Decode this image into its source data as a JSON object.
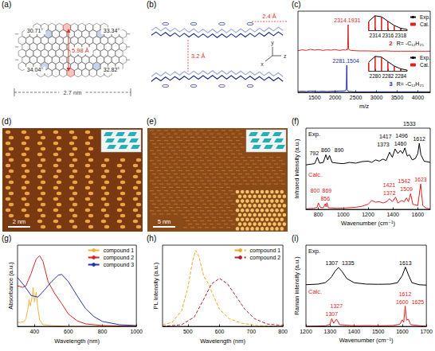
{
  "chart_data": [
    {
      "title": "(c)",
      "type": "line",
      "xlabel": "m/z",
      "xlim": [
        1100,
        4300
      ],
      "xticks": [
        1500,
        2000,
        2500,
        3000,
        3500,
        4000
      ],
      "ylim": [
        0,
        1.5
      ],
      "tick_labels": "x",
      "x": [
        1100,
        1200,
        1300,
        1400,
        1500,
        1600,
        1700,
        1800,
        1900,
        2000,
        2100,
        2200,
        2250,
        2270,
        2281,
        2290,
        2300,
        2314,
        2325,
        2340,
        2380,
        2450,
        2600,
        2800,
        3000,
        3200,
        3400,
        3600,
        3800,
        4000,
        4200,
        4300
      ],
      "series": [
        {
          "name": "2",
          "color": "#d62728",
          "values": [
            0.04,
            0.07,
            0.05,
            0.09,
            0.06,
            0.08,
            0.05,
            0.07,
            0.06,
            0.08,
            0.05,
            0.07,
            0.06,
            0.08,
            0.1,
            0.06,
            0.08,
            1.0,
            0.12,
            0.07,
            0.05,
            0.04,
            0.03,
            0.03,
            0.02,
            0.03,
            0.02,
            0.02,
            0.02,
            0.02,
            0.02,
            0.02
          ]
        },
        {
          "name": "3",
          "color": "#1f2f9e",
          "values": [
            0.03,
            0.04,
            0.03,
            0.05,
            0.04,
            0.03,
            0.04,
            0.03,
            0.04,
            0.04,
            0.05,
            0.05,
            0.06,
            0.12,
            1.0,
            0.1,
            0.06,
            0.05,
            0.04,
            0.03,
            0.03,
            0.02,
            0.02,
            0.02,
            0.02,
            0.02,
            0.02,
            0.02,
            0.02,
            0.02,
            0.02,
            0.02
          ]
        }
      ],
      "annotations": [
        {
          "text": "2314.1931",
          "x": 2314,
          "series": "2"
        },
        {
          "text": "2281.1504",
          "x": 2281,
          "series": "3"
        },
        {
          "text": "R= -C₁₂H₂₅",
          "series": "2"
        },
        {
          "text": "R= -C₁₂H₂₅",
          "series": "3"
        }
      ],
      "insets": [
        {
          "type": "line",
          "xlim": [
            2313,
            2319
          ],
          "xticks": [
            2314,
            2316,
            2318
          ],
          "ylim": [
            0,
            1.1
          ],
          "tick_labels": "x",
          "legend": "right",
          "x": [
            2313,
            2314,
            2315,
            2316,
            2317,
            2318,
            2319
          ],
          "series": [
            {
              "name": "Exp.",
              "color": "#000000",
              "type": "line",
              "values": [
                0.62,
                1.0,
                0.93,
                0.62,
                0.33,
                0.14,
                0.05
              ]
            },
            {
              "name": "Cal.",
              "color": "#e02020",
              "type": "bar",
              "values": [
                0.6,
                1.0,
                0.9,
                0.6,
                0.3,
                0.13,
                0.05
              ]
            }
          ]
        },
        {
          "type": "line",
          "xlim": [
            2279,
            2285
          ],
          "xticks": [
            2280,
            2282,
            2284
          ],
          "ylim": [
            0,
            1.1
          ],
          "tick_labels": "x",
          "legend": "right",
          "x": [
            2279,
            2280,
            2281,
            2282,
            2283,
            2284,
            2285
          ],
          "series": [
            {
              "name": "Exp.",
              "color": "#000000",
              "type": "line",
              "values": [
                0.6,
                1.0,
                0.95,
                0.63,
                0.33,
                0.14,
                0.05
              ]
            },
            {
              "name": "Cal.",
              "color": "#e02020",
              "type": "bar",
              "values": [
                0.58,
                1.0,
                0.92,
                0.6,
                0.31,
                0.13,
                0.05
              ]
            }
          ]
        }
      ]
    },
    {
      "title": "(f)",
      "type": "line",
      "xlabel": "Wavenumber (cm⁻¹)",
      "ylabel": "Infrared intensity (a.u.)",
      "xlim": [
        700,
        1700
      ],
      "xticks": [
        800,
        1000,
        1200,
        1400,
        1600
      ],
      "ylim": [
        0,
        1.6
      ],
      "tick_labels": "x",
      "series": [
        {
          "name": "Exp.",
          "color": "#000000",
          "x": [
            700,
            740,
            770,
            792,
            810,
            840,
            860,
            875,
            890,
            910,
            950,
            1000,
            1050,
            1100,
            1150,
            1200,
            1230,
            1260,
            1290,
            1320,
            1345,
            1373,
            1395,
            1417,
            1440,
            1460,
            1478,
            1496,
            1515,
            1533,
            1555,
            1580,
            1600,
            1612,
            1625,
            1650,
            1700
          ],
          "values": [
            0.15,
            0.18,
            0.2,
            0.45,
            0.22,
            0.25,
            0.55,
            0.35,
            0.52,
            0.25,
            0.22,
            0.2,
            0.25,
            0.22,
            0.28,
            0.3,
            0.25,
            0.35,
            0.3,
            0.38,
            0.32,
            0.65,
            0.45,
            0.78,
            0.6,
            0.72,
            0.6,
            0.82,
            0.5,
            0.55,
            0.35,
            0.4,
            0.6,
            1.0,
            0.55,
            0.3,
            0.25
          ]
        },
        {
          "name": "Calc.",
          "color": "#e02020",
          "x": [
            700,
            760,
            790,
            800,
            815,
            840,
            856,
            862,
            869,
            880,
            950,
            1000,
            1100,
            1150,
            1200,
            1230,
            1260,
            1290,
            1320,
            1350,
            1372,
            1395,
            1421,
            1440,
            1470,
            1490,
            1509,
            1525,
            1542,
            1560,
            1600,
            1623,
            1640,
            1670,
            1700
          ],
          "values": [
            0.02,
            0.04,
            0.08,
            0.25,
            0.08,
            0.06,
            0.22,
            0.1,
            0.26,
            0.06,
            0.04,
            0.05,
            0.08,
            0.12,
            0.2,
            0.35,
            0.28,
            0.3,
            0.25,
            0.3,
            0.42,
            0.3,
            0.48,
            0.25,
            0.35,
            0.3,
            0.45,
            0.3,
            0.62,
            0.2,
            0.15,
            1.0,
            0.15,
            0.04,
            0.02
          ]
        }
      ],
      "annotations": [
        {
          "text": "792",
          "x": 792,
          "series": "Exp."
        },
        {
          "text": "860",
          "x": 860,
          "series": "Exp."
        },
        {
          "text": "890",
          "x": 890,
          "series": "Exp."
        },
        {
          "text": "1373",
          "x": 1373,
          "series": "Exp."
        },
        {
          "text": "1417",
          "x": 1417,
          "series": "Exp."
        },
        {
          "text": "1460",
          "x": 1460,
          "series": "Exp."
        },
        {
          "text": "1496",
          "x": 1496,
          "series": "Exp."
        },
        {
          "text": "1533",
          "x": 1533,
          "series": "Exp."
        },
        {
          "text": "1612",
          "x": 1612,
          "series": "Exp."
        },
        {
          "text": "800",
          "x": 800,
          "series": "Calc."
        },
        {
          "text": "856",
          "x": 856,
          "series": "Calc."
        },
        {
          "text": "869",
          "x": 869,
          "series": "Calc."
        },
        {
          "text": "1372",
          "x": 1372,
          "series": "Calc."
        },
        {
          "text": "1421",
          "x": 1421,
          "series": "Calc."
        },
        {
          "text": "1509",
          "x": 1509,
          "series": "Calc."
        },
        {
          "text": "1542",
          "x": 1542,
          "series": "Calc."
        },
        {
          "text": "1623",
          "x": 1623,
          "series": "Calc."
        }
      ]
    },
    {
      "title": "(g)",
      "type": "line",
      "xlabel": "Wavelength (nm)",
      "ylabel": "Absorbance (a.u.)",
      "xlim": [
        300,
        1000
      ],
      "xticks": [
        400,
        600,
        800,
        1000
      ],
      "ylim": [
        0,
        1
      ],
      "tick_labels": "x",
      "legend": "top-right",
      "series": [
        {
          "name": "compound 1",
          "color": "#f5b041",
          "x": [
            300,
            320,
            340,
            350,
            360,
            368,
            375,
            385,
            392,
            400,
            410,
            418,
            430,
            450,
            500,
            600,
            800,
            1000
          ],
          "values": [
            0.05,
            0.05,
            0.06,
            0.1,
            0.2,
            0.33,
            0.25,
            0.35,
            0.48,
            0.3,
            0.42,
            0.25,
            0.08,
            0.02,
            0.01,
            0.0,
            0.0,
            0.0
          ]
        },
        {
          "name": "compound 2",
          "color": "#d62728",
          "x": [
            300,
            330,
            350,
            380,
            410,
            430,
            450,
            480,
            520,
            560,
            600,
            650,
            700,
            800,
            1000
          ],
          "values": [
            0.5,
            0.48,
            0.5,
            0.65,
            0.83,
            0.87,
            0.8,
            0.55,
            0.4,
            0.28,
            0.15,
            0.07,
            0.03,
            0.01,
            0.0
          ]
        },
        {
          "name": "compound 3",
          "color": "#2335b0",
          "x": [
            300,
            340,
            380,
            420,
            460,
            500,
            540,
            560,
            600,
            650,
            700,
            750,
            800,
            900,
            1000
          ],
          "values": [
            0.6,
            0.5,
            0.38,
            0.36,
            0.45,
            0.55,
            0.63,
            0.64,
            0.55,
            0.38,
            0.22,
            0.12,
            0.06,
            0.02,
            0.01
          ]
        }
      ]
    },
    {
      "title": "(h)",
      "type": "line",
      "xlabel": "Wavelength (nm)",
      "ylabel": "PL Intensity (a.u.)",
      "xlim": [
        420,
        800
      ],
      "xticks": [
        500,
        600,
        700,
        800
      ],
      "ylim": [
        0,
        1.05
      ],
      "tick_labels": "x",
      "legend": "top-right",
      "line_style": "dashed",
      "series": [
        {
          "name": "compound 1",
          "color": "#f5a623",
          "x": [
            420,
            450,
            480,
            500,
            515,
            525,
            535,
            550,
            565,
            580,
            600,
            630,
            670,
            720,
            800
          ],
          "values": [
            0.02,
            0.05,
            0.2,
            0.5,
            0.85,
            0.98,
            0.9,
            0.65,
            0.55,
            0.4,
            0.22,
            0.1,
            0.04,
            0.01,
            0.0
          ]
        },
        {
          "name": "compound 2",
          "color": "#b22222",
          "x": [
            420,
            480,
            520,
            550,
            575,
            600,
            625,
            650,
            680,
            710,
            750,
            800
          ],
          "values": [
            0.0,
            0.02,
            0.12,
            0.35,
            0.55,
            0.62,
            0.55,
            0.4,
            0.22,
            0.1,
            0.03,
            0.01
          ]
        }
      ]
    },
    {
      "title": "(i)",
      "type": "line",
      "xlabel": "Wavenumber (cm⁻¹)",
      "ylabel": "Raman intensity (a.u.)",
      "xlim": [
        1200,
        1700
      ],
      "xticks": [
        1200,
        1300,
        1400,
        1500,
        1600,
        1700
      ],
      "ylim": [
        0,
        2
      ],
      "tick_labels": "x",
      "series": [
        {
          "name": "Exp.",
          "color": "#000000",
          "x": [
            1200,
            1250,
            1280,
            1300,
            1307,
            1320,
            1335,
            1350,
            1370,
            1400,
            1450,
            1500,
            1550,
            1580,
            1600,
            1613,
            1625,
            1640,
            1670,
            1700
          ],
          "values": [
            0.05,
            0.08,
            0.15,
            0.35,
            0.45,
            0.7,
            0.9,
            0.7,
            0.35,
            0.15,
            0.08,
            0.07,
            0.08,
            0.15,
            0.5,
            0.92,
            0.55,
            0.15,
            0.05,
            0.03
          ]
        },
        {
          "name": "Calc.",
          "color": "#e02020",
          "x": [
            1200,
            1280,
            1300,
            1307,
            1315,
            1327,
            1340,
            1400,
            1450,
            1500,
            1560,
            1590,
            1600,
            1606,
            1612,
            1618,
            1625,
            1635,
            1700
          ],
          "values": [
            0.0,
            0.02,
            0.1,
            0.38,
            0.15,
            0.35,
            0.08,
            0.03,
            0.04,
            0.03,
            0.04,
            0.1,
            0.32,
            0.2,
            1.0,
            0.3,
            0.35,
            0.08,
            0.0
          ]
        }
      ],
      "annotations": [
        {
          "text": "1307",
          "x": 1307,
          "series": "Exp."
        },
        {
          "text": "1335",
          "x": 1335,
          "series": "Exp."
        },
        {
          "text": "1613",
          "x": 1613,
          "series": "Exp."
        },
        {
          "text": "1307",
          "x": 1307,
          "series": "Calc."
        },
        {
          "text": "1327",
          "x": 1327,
          "series": "Calc."
        },
        {
          "text": "1600",
          "x": 1600,
          "series": "Calc."
        },
        {
          "text": "1612",
          "x": 1612,
          "series": "Calc."
        },
        {
          "text": "1625",
          "x": 1625,
          "series": "Calc."
        }
      ]
    }
  ],
  "diagrams": [
    {
      "title": "(a)",
      "angles": [
        "30.71°",
        "33.34°",
        "34.04°",
        "32.82°"
      ],
      "distance": "5.98 Å",
      "width": "2.7 nm"
    },
    {
      "title": "(b)",
      "distances": [
        "2.4 Å",
        "3.2 Å"
      ],
      "axes": [
        "y",
        "x",
        "z"
      ]
    },
    {
      "title": "(d)",
      "scale_bar": "2 nm"
    },
    {
      "title": "(e)",
      "scale_bar": "5 nm"
    }
  ]
}
